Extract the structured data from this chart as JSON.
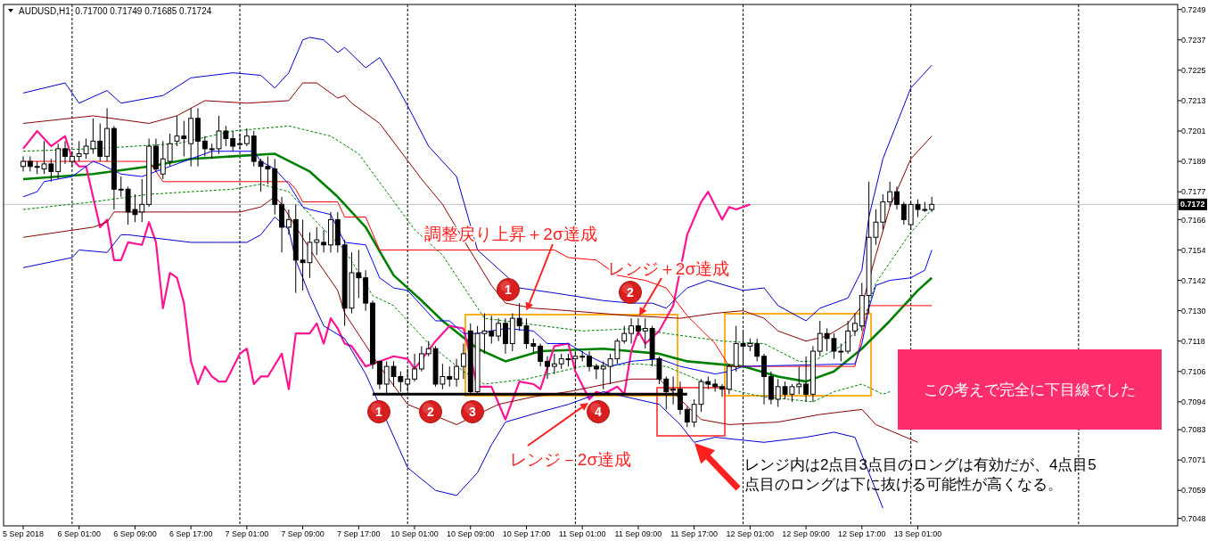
{
  "chart_data": {
    "type": "candlestick",
    "title": "AUDUSD,H1  0.71700 0.71749 0.71685 0.71724",
    "color": "#000000",
    "categories": [
      "5 Sep 2018",
      null,
      null,
      null,
      null,
      null,
      null,
      null,
      "6 Sep 01:00",
      null,
      null,
      null,
      null,
      null,
      null,
      null,
      "6 Sep 09:00",
      null,
      null,
      null,
      null,
      null,
      null,
      null,
      "6 Sep 17:00",
      null,
      null,
      null,
      null,
      null,
      null,
      null,
      "7 Sep 01:00",
      null,
      null,
      null,
      null,
      null,
      null,
      null,
      "7 Sep 09:00",
      null,
      null,
      null,
      null,
      null,
      null,
      null,
      "7 Sep 17:00",
      null,
      null,
      null,
      null,
      null,
      null,
      null,
      "10 Sep 01:00",
      null,
      null,
      null,
      null,
      null,
      null,
      null,
      "10 Sep 09:00",
      null,
      null,
      null,
      null,
      null,
      null,
      null,
      "10 Sep 17:00",
      null,
      null,
      null,
      null,
      null,
      null,
      null,
      "11 Sep 01:00",
      null,
      null,
      null,
      null,
      null,
      null,
      null,
      "11 Sep 09:00",
      null,
      null,
      null,
      null,
      null,
      null,
      null,
      "11 Sep 17:00",
      null,
      null,
      null,
      null,
      null,
      null,
      null,
      "12 Sep 01:00",
      null,
      null,
      null,
      null,
      null,
      null,
      null,
      "12 Sep 09:00",
      null,
      null,
      null,
      null,
      null,
      null,
      null,
      "12 Sep 17:00",
      null,
      null,
      null,
      null,
      null,
      null,
      null,
      "13 Sep 01:00",
      null,
      null
    ],
    "ohlc": [
      [
        0.7187,
        0.7191,
        0.7185,
        0.7189
      ],
      [
        0.7189,
        0.7191,
        0.7185,
        0.7187
      ],
      [
        0.7187,
        0.7189,
        0.7184,
        0.7187
      ],
      [
        0.7186,
        0.7197,
        0.7184,
        0.7188
      ],
      [
        0.7188,
        0.719,
        0.7181,
        0.7185
      ],
      [
        0.7185,
        0.7196,
        0.7182,
        0.7194
      ],
      [
        0.7194,
        0.7197,
        0.7188,
        0.7191
      ],
      [
        0.7189,
        0.7193,
        0.7187,
        0.7191
      ],
      [
        0.7191,
        0.7197,
        0.7189,
        0.7192
      ],
      [
        0.7192,
        0.7198,
        0.719,
        0.7195
      ],
      [
        0.7194,
        0.7206,
        0.7192,
        0.7197
      ],
      [
        0.7197,
        0.7204,
        0.7189,
        0.7191
      ],
      [
        0.7191,
        0.721,
        0.7189,
        0.7202
      ],
      [
        0.7202,
        0.7203,
        0.717,
        0.7178
      ],
      [
        0.7178,
        0.7183,
        0.7175,
        0.7178
      ],
      [
        0.7178,
        0.7179,
        0.7164,
        0.7169
      ],
      [
        0.717,
        0.7176,
        0.7165,
        0.7168
      ],
      [
        0.7169,
        0.7182,
        0.7165,
        0.7172
      ],
      [
        0.7172,
        0.7198,
        0.7171,
        0.7195
      ],
      [
        0.7195,
        0.7198,
        0.7185,
        0.7186
      ],
      [
        0.7184,
        0.7197,
        0.7182,
        0.719
      ],
      [
        0.7189,
        0.72,
        0.7187,
        0.7196
      ],
      [
        0.7197,
        0.7207,
        0.7195,
        0.7199
      ],
      [
        0.7199,
        0.7205,
        0.7191,
        0.7198
      ],
      [
        0.7196,
        0.721,
        0.7187,
        0.7206
      ],
      [
        0.7206,
        0.721,
        0.7187,
        0.7197
      ],
      [
        0.7197,
        0.7199,
        0.7191,
        0.7194
      ],
      [
        0.7194,
        0.7196,
        0.719,
        0.7194
      ],
      [
        0.7194,
        0.7207,
        0.7192,
        0.7201
      ],
      [
        0.7201,
        0.7203,
        0.7195,
        0.7198
      ],
      [
        0.7198,
        0.7201,
        0.7193,
        0.7195
      ],
      [
        0.7196,
        0.72,
        0.7194,
        0.7196
      ],
      [
        0.7196,
        0.7202,
        0.7195,
        0.7199
      ],
      [
        0.7199,
        0.7201,
        0.7187,
        0.7189
      ],
      [
        0.7189,
        0.719,
        0.7177,
        0.7187
      ],
      [
        0.7187,
        0.7191,
        0.718,
        0.7186
      ],
      [
        0.7186,
        0.719,
        0.7168,
        0.7172
      ],
      [
        0.7172,
        0.7175,
        0.7153,
        0.7163
      ],
      [
        0.7163,
        0.717,
        0.716,
        0.7166
      ],
      [
        0.7166,
        0.7172,
        0.7137,
        0.715
      ],
      [
        0.715,
        0.7166,
        0.7138,
        0.7149
      ],
      [
        0.7149,
        0.7161,
        0.7143,
        0.7157
      ],
      [
        0.7157,
        0.7163,
        0.7152,
        0.7158
      ],
      [
        0.7157,
        0.7162,
        0.7153,
        0.7156
      ],
      [
        0.7156,
        0.7169,
        0.7153,
        0.7166
      ],
      [
        0.7166,
        0.7169,
        0.7153,
        0.7156
      ],
      [
        0.7156,
        0.7158,
        0.7124,
        0.7131
      ],
      [
        0.7131,
        0.7153,
        0.7129,
        0.7145
      ],
      [
        0.7145,
        0.7154,
        0.7135,
        0.7143
      ],
      [
        0.7143,
        0.7146,
        0.713,
        0.7133
      ],
      [
        0.7133,
        0.7134,
        0.7107,
        0.7109
      ],
      [
        0.711,
        0.711,
        0.7099,
        0.7101
      ],
      [
        0.7101,
        0.711,
        0.7097,
        0.7108
      ],
      [
        0.7108,
        0.711,
        0.71,
        0.7104
      ],
      [
        0.7104,
        0.7106,
        0.7098,
        0.7102
      ],
      [
        0.7101,
        0.7107,
        0.7098,
        0.7103
      ],
      [
        0.7103,
        0.7113,
        0.7102,
        0.7107
      ],
      [
        0.7107,
        0.7116,
        0.7106,
        0.7113
      ],
      [
        0.7113,
        0.7118,
        0.7112,
        0.7115
      ],
      [
        0.7115,
        0.7116,
        0.71,
        0.7101
      ],
      [
        0.7101,
        0.7109,
        0.7099,
        0.7104
      ],
      [
        0.7104,
        0.7108,
        0.71,
        0.7103
      ],
      [
        0.7103,
        0.7111,
        0.71,
        0.7108
      ],
      [
        0.7108,
        0.7117,
        0.7103,
        0.7113
      ],
      [
        0.7122,
        0.7125,
        0.7097,
        0.7098
      ],
      [
        0.7098,
        0.7124,
        0.7097,
        0.7121
      ],
      [
        0.7121,
        0.7129,
        0.7113,
        0.7122
      ],
      [
        0.7122,
        0.7128,
        0.7117,
        0.712
      ],
      [
        0.712,
        0.7127,
        0.7118,
        0.7125
      ],
      [
        0.7125,
        0.7127,
        0.7113,
        0.7117
      ],
      [
        0.7117,
        0.7129,
        0.7114,
        0.7127
      ],
      [
        0.7127,
        0.7133,
        0.7122,
        0.7124
      ],
      [
        0.7124,
        0.7127,
        0.7115,
        0.7117
      ],
      [
        0.7117,
        0.7119,
        0.7113,
        0.7116
      ],
      [
        0.7116,
        0.7117,
        0.7108,
        0.711
      ],
      [
        0.711,
        0.7112,
        0.7103,
        0.7108
      ],
      [
        0.7108,
        0.7113,
        0.7105,
        0.7109
      ],
      [
        0.7109,
        0.7113,
        0.7107,
        0.7111
      ],
      [
        0.7111,
        0.7113,
        0.7108,
        0.7111
      ],
      [
        0.7111,
        0.7114,
        0.7107,
        0.7112
      ],
      [
        0.7112,
        0.7114,
        0.711,
        0.7112
      ],
      [
        0.7112,
        0.7114,
        0.7106,
        0.7108
      ],
      [
        0.7108,
        0.7109,
        0.7103,
        0.7107
      ],
      [
        0.7107,
        0.711,
        0.7099,
        0.7108
      ],
      [
        0.7108,
        0.7113,
        0.7101,
        0.7111
      ],
      [
        0.7111,
        0.7119,
        0.7109,
        0.7118
      ],
      [
        0.7118,
        0.7124,
        0.7117,
        0.7121
      ],
      [
        0.7121,
        0.7127,
        0.7117,
        0.7124
      ],
      [
        0.7124,
        0.7127,
        0.712,
        0.7122
      ],
      [
        0.7122,
        0.7127,
        0.7115,
        0.7123
      ],
      [
        0.7123,
        0.7124,
        0.7108,
        0.7111
      ],
      [
        0.7111,
        0.7112,
        0.7101,
        0.7103
      ],
      [
        0.7103,
        0.7104,
        0.7091,
        0.7098
      ],
      [
        0.7099,
        0.7104,
        0.7093,
        0.7099
      ],
      [
        0.7099,
        0.7102,
        0.7089,
        0.7091
      ],
      [
        0.7091,
        0.7092,
        0.7084,
        0.7086
      ],
      [
        0.7086,
        0.7095,
        0.7084,
        0.7093
      ],
      [
        0.7093,
        0.7103,
        0.709,
        0.7102
      ],
      [
        0.7102,
        0.7104,
        0.7099,
        0.7101
      ],
      [
        0.7101,
        0.7103,
        0.7098,
        0.71
      ],
      [
        0.71,
        0.7101,
        0.7096,
        0.7099
      ],
      [
        0.7099,
        0.7109,
        0.7097,
        0.7108
      ],
      [
        0.7108,
        0.7124,
        0.7106,
        0.7117
      ],
      [
        0.7117,
        0.7122,
        0.7108,
        0.7116
      ],
      [
        0.7116,
        0.7119,
        0.7114,
        0.7117
      ],
      [
        0.7117,
        0.7119,
        0.711,
        0.7112
      ],
      [
        0.7112,
        0.7113,
        0.7093,
        0.7104
      ],
      [
        0.7104,
        0.7106,
        0.7093,
        0.7095
      ],
      [
        0.7095,
        0.7103,
        0.7092,
        0.71
      ],
      [
        0.71,
        0.7102,
        0.7095,
        0.7097
      ],
      [
        0.7097,
        0.7101,
        0.7094,
        0.71
      ],
      [
        0.71,
        0.7108,
        0.7097,
        0.7101
      ],
      [
        0.7101,
        0.7112,
        0.7094,
        0.7097
      ],
      [
        0.7097,
        0.7116,
        0.7094,
        0.7114
      ],
      [
        0.7114,
        0.7126,
        0.7112,
        0.7121
      ],
      [
        0.7121,
        0.7123,
        0.7114,
        0.7119
      ],
      [
        0.7119,
        0.7121,
        0.7111,
        0.7114
      ],
      [
        0.7114,
        0.7117,
        0.711,
        0.7114
      ],
      [
        0.7114,
        0.7126,
        0.7113,
        0.7122
      ],
      [
        0.7122,
        0.7129,
        0.712,
        0.7125
      ],
      [
        0.7124,
        0.7141,
        0.7122,
        0.7136
      ],
      [
        0.7136,
        0.7181,
        0.7129,
        0.7159
      ],
      [
        0.7159,
        0.717,
        0.7156,
        0.7165
      ],
      [
        0.7165,
        0.7176,
        0.7162,
        0.7173
      ],
      [
        0.7173,
        0.7181,
        0.7171,
        0.7177
      ],
      [
        0.7177,
        0.7179,
        0.717,
        0.7172
      ],
      [
        0.7172,
        0.7173,
        0.7164,
        0.7166
      ],
      [
        0.7164,
        0.7173,
        0.7162,
        0.7172
      ],
      [
        0.7172,
        0.7174,
        0.7167,
        0.717
      ],
      [
        0.717,
        0.7173,
        0.7169,
        0.717
      ],
      [
        0.717,
        0.7175,
        0.7169,
        0.7172
      ]
    ],
    "series": [
      {
        "type": "line",
        "color": "#008000",
        "values": [
          0.7182,
          null,
          null,
          null,
          null,
          null,
          null,
          null,
          null,
          null,
          0.7184,
          null,
          null,
          null,
          null,
          null,
          null,
          null,
          0.7187,
          null,
          null,
          null,
          null,
          null,
          0.719,
          null,
          null,
          null,
          null,
          null,
          0.7191,
          null,
          null,
          null,
          null,
          null,
          0.7192,
          null,
          null,
          null,
          null,
          0.7185,
          null,
          null,
          null,
          0.7175,
          null,
          null,
          null,
          0.7163,
          null,
          null,
          null,
          0.7144,
          null,
          null,
          null,
          0.7134,
          null,
          null,
          0.7126,
          null,
          null,
          null,
          null,
          0.7115,
          null,
          null,
          null,
          0.711,
          null,
          null,
          null,
          null,
          0.7114,
          null,
          null,
          null,
          null,
          null,
          null,
          null,
          null,
          0.7115,
          null,
          null,
          null,
          null,
          null,
          null,
          null,
          0.7113,
          null,
          null,
          null,
          0.711,
          null,
          null,
          null,
          null,
          null,
          null,
          null,
          0.7108,
          null,
          null,
          null,
          null,
          0.7104,
          null,
          null,
          null,
          0.7102,
          null,
          null,
          null,
          0.7106,
          null,
          null,
          null,
          0.7115,
          null,
          null,
          null,
          0.7126,
          null,
          null,
          null,
          0.7138,
          null,
          0.7143
        ]
      },
      {
        "type": "line",
        "color": "#ff1493",
        "values": [
          0.7194,
          null,
          0.7201,
          null,
          0.7195,
          null,
          0.7199,
          0.719,
          0.7187,
          0.7187,
          null,
          0.7163,
          0.7166,
          0.715,
          0.715,
          0.7157,
          null,
          0.7156,
          0.7165,
          0.7157,
          0.7131,
          0.7145,
          0.7143,
          0.7133,
          0.711,
          0.7101,
          0.7108,
          0.7104,
          0.7102,
          0.7102,
          null,
          0.7113,
          0.7115,
          0.7101,
          0.7104,
          0.7104,
          null,
          0.7113,
          0.7099,
          0.7121,
          null,
          0.7121,
          0.7125,
          0.7117,
          0.7127,
          0.7123,
          0.7117,
          0.7116,
          null,
          0.7108,
          null,
          0.711,
          null,
          0.7112,
          null,
          0.7111,
          0.7107,
          null,
          null,
          0.7118,
          null,
          0.7124,
          null,
          0.7123,
          null,
          0.71,
          null,
          0.71,
          null,
          0.7087,
          null,
          0.7102,
          null,
          0.7101,
          0.7099,
          null,
          0.7116,
          null,
          0.7117,
          0.7106,
          null,
          0.7095,
          0.7098,
          0.7097,
          null,
          0.71,
          0.7097,
          0.7114,
          0.7122,
          0.7117,
          null,
          0.7122,
          null,
          0.7132,
          null,
          0.716,
          null,
          0.7173,
          0.7177,
          null,
          0.7166,
          0.7171,
          0.717,
          null,
          0.7172,
          null,
          null,
          null,
          null,
          null,
          null,
          null,
          null,
          null,
          null,
          null,
          null,
          null,
          null,
          null,
          null,
          null,
          null,
          null,
          null,
          null,
          null,
          null,
          null,
          null,
          null
        ]
      },
      {
        "type": "line",
        "color": "#008000",
        "line_style": "dashed",
        "values": [
          0.7193,
          null,
          null,
          null,
          null,
          null,
          null,
          null,
          null,
          null,
          0.7194,
          null,
          null,
          null,
          null,
          null,
          null,
          null,
          null,
          null,
          null,
          null,
          0.7196,
          null,
          null,
          null,
          null,
          null,
          null,
          null,
          0.7201,
          null,
          null,
          null,
          null,
          null,
          null,
          null,
          0.7203,
          null,
          null,
          null,
          null,
          null,
          0.7199,
          null,
          null,
          null,
          0.7192,
          null,
          null,
          null,
          0.7177,
          null,
          null,
          null,
          0.7162,
          null,
          null,
          null,
          0.7152,
          null,
          null,
          null,
          null,
          null,
          0.7127,
          null,
          null,
          null,
          null,
          null,
          null,
          null,
          null,
          null,
          null,
          null,
          null,
          null,
          0.7122,
          null,
          null,
          null,
          null,
          null,
          null,
          null,
          0.7123,
          null,
          null,
          null,
          0.7121,
          null,
          null,
          null,
          null,
          null,
          null,
          null,
          0.7118,
          null,
          null,
          null,
          null,
          null,
          0.7117,
          null,
          null,
          null,
          null,
          0.711,
          null,
          0.711,
          null,
          null,
          null,
          0.7116,
          null,
          null,
          0.7124,
          null,
          0.7141,
          null,
          0.7149,
          null,
          null,
          0.7161,
          null,
          null,
          0.717
        ]
      },
      {
        "type": "line",
        "color": "#008000",
        "line_style": "dashed",
        "values": [
          0.717,
          null,
          null,
          null,
          null,
          null,
          null,
          null,
          null,
          null,
          0.7173,
          null,
          null,
          null,
          null,
          null,
          null,
          null,
          0.7176,
          null,
          null,
          null,
          null,
          null,
          0.7177,
          null,
          null,
          null,
          null,
          null,
          0.7178,
          null,
          null,
          null,
          0.718,
          null,
          null,
          null,
          0.7177,
          null,
          null,
          null,
          0.7165,
          null,
          null,
          null,
          0.7154,
          null,
          null,
          null,
          0.7136,
          null,
          null,
          0.7132,
          null,
          null,
          null,
          null,
          0.7117,
          null,
          null,
          null,
          null,
          0.7106,
          null,
          null,
          0.7101,
          null,
          null,
          null,
          null,
          null,
          0.7103,
          null,
          null,
          null,
          null,
          null,
          null,
          null,
          0.7108,
          null,
          null,
          null,
          null,
          null,
          null,
          null,
          0.7109,
          null,
          null,
          null,
          0.7108,
          null,
          null,
          null,
          null,
          null,
          0.7101,
          null,
          null,
          null,
          null,
          null,
          0.7097,
          null,
          0.7096,
          null,
          null,
          null,
          null,
          null,
          null,
          0.7094,
          null,
          null,
          0.7098,
          null,
          null,
          null,
          0.7101,
          null,
          null,
          0.7097,
          0.7098,
          null,
          null,
          null,
          null,
          null,
          null
        ]
      },
      {
        "type": "line",
        "color": "#8b0000",
        "values": [
          0.7204,
          null,
          null,
          null,
          null,
          null,
          null,
          null,
          null,
          null,
          0.7207,
          null,
          null,
          null,
          null,
          null,
          null,
          null,
          0.7204,
          null,
          null,
          null,
          0.7207,
          null,
          null,
          null,
          0.7213,
          null,
          null,
          null,
          null,
          null,
          0.7212,
          null,
          null,
          null,
          null,
          null,
          0.7213,
          null,
          0.722,
          null,
          0.722,
          0.7218,
          null,
          0.7214,
          0.7215,
          0.7212,
          null,
          null,
          null,
          0.7204,
          null,
          null,
          null,
          null,
          null,
          0.7182,
          null,
          null,
          0.7172,
          null,
          null,
          0.7158,
          null,
          null,
          null,
          0.714,
          null,
          0.7133,
          null,
          null,
          null,
          0.7131,
          null,
          null,
          null,
          null,
          0.713,
          null,
          null,
          null,
          null,
          null,
          null,
          null,
          null,
          0.7128,
          null,
          null,
          null,
          null,
          null,
          null,
          0.7127,
          null,
          null,
          null,
          null,
          0.7129,
          null,
          null,
          null,
          0.713,
          null,
          null,
          0.7127,
          null,
          0.7122,
          null,
          null,
          null,
          0.7118,
          null,
          null,
          0.712,
          null,
          null,
          0.7125,
          null,
          0.7132,
          null,
          0.7152,
          null,
          0.7171,
          null,
          null,
          0.719,
          null,
          null,
          0.7199
        ]
      },
      {
        "type": "line",
        "color": "#8b0000",
        "values": [
          0.7159,
          null,
          null,
          null,
          null,
          null,
          null,
          null,
          null,
          null,
          0.7163,
          null,
          0.7165,
          0.7169,
          null,
          null,
          0.7169,
          null,
          null,
          null,
          null,
          null,
          null,
          null,
          0.7169,
          null,
          null,
          null,
          null,
          null,
          null,
          0.7169,
          null,
          null,
          0.7171,
          null,
          0.7175,
          0.7172,
          null,
          null,
          null,
          null,
          0.715,
          null,
          null,
          0.7138,
          0.7129,
          null,
          null,
          null,
          null,
          0.7108,
          null,
          null,
          null,
          0.7093,
          null,
          null,
          null,
          null,
          null,
          null,
          0.7085,
          null,
          null,
          null,
          null,
          null,
          0.7093,
          null,
          null,
          null,
          null,
          0.7096,
          null,
          null,
          null,
          null,
          0.7098,
          null,
          null,
          null,
          null,
          null,
          null,
          null,
          null,
          0.7103,
          null,
          null,
          null,
          0.7103,
          null,
          null,
          0.7095,
          null,
          null,
          0.7087,
          null,
          null,
          null,
          0.7085,
          null,
          null,
          null,
          null,
          null,
          null,
          0.7086,
          null,
          null,
          null,
          null,
          null,
          0.7089,
          null,
          null,
          0.709,
          null,
          null,
          0.7091,
          null,
          0.7085,
          null,
          null,
          null,
          null,
          null,
          0.7078,
          null,
          null
        ]
      },
      {
        "type": "line",
        "color": "#0000cd",
        "values": [
          0.7216,
          null,
          null,
          null,
          null,
          null,
          0.722,
          null,
          0.7212,
          null,
          null,
          null,
          0.7217,
          null,
          0.7212,
          null,
          null,
          null,
          null,
          null,
          0.7215,
          null,
          null,
          null,
          0.7222,
          null,
          null,
          null,
          null,
          null,
          0.7224,
          null,
          null,
          null,
          0.7223,
          null,
          0.7218,
          null,
          0.7224,
          null,
          0.7237,
          0.7238,
          null,
          0.7237,
          null,
          0.7232,
          0.7234,
          null,
          null,
          0.7226,
          null,
          0.723,
          null,
          0.7221,
          null,
          0.7211,
          null,
          null,
          0.7195,
          null,
          null,
          null,
          0.7183,
          null,
          null,
          0.7154,
          null,
          null,
          null,
          null,
          null,
          0.7139,
          null,
          null,
          null,
          null,
          0.7137,
          null,
          null,
          null,
          null,
          null,
          null,
          0.7134,
          null,
          null,
          null,
          0.7133,
          null,
          null,
          0.7133,
          null,
          0.7131,
          null,
          null,
          0.7139,
          null,
          null,
          0.7142,
          null,
          null,
          null,
          null,
          0.7138,
          null,
          null,
          0.7139,
          null,
          0.7132,
          null,
          null,
          null,
          0.7126,
          null,
          0.7131,
          null,
          null,
          null,
          0.7135,
          null,
          0.7146,
          0.7167,
          null,
          0.719,
          null,
          null,
          null,
          0.7218,
          null,
          null,
          0.7227
        ]
      },
      {
        "type": "line",
        "color": "#0000cd",
        "values": [
          0.7147,
          null,
          null,
          null,
          null,
          null,
          null,
          0.7151,
          0.7154,
          null,
          null,
          null,
          0.7153,
          null,
          0.716,
          0.716,
          null,
          null,
          0.7159,
          null,
          null,
          null,
          null,
          null,
          0.7157,
          null,
          null,
          null,
          0.7157,
          null,
          null,
          null,
          0.7157,
          null,
          0.716,
          null,
          0.7167,
          null,
          0.7162,
          0.715,
          null,
          0.7136,
          null,
          0.7124,
          null,
          null,
          0.7119,
          null,
          null,
          0.7105,
          null,
          null,
          null,
          null,
          null,
          0.7068,
          null,
          null,
          null,
          0.7059,
          null,
          null,
          0.7057,
          null,
          null,
          0.7066,
          null,
          0.7077,
          null,
          0.7086,
          null,
          null,
          null,
          null,
          0.709,
          null,
          null,
          null,
          0.7093,
          null,
          null,
          null,
          null,
          0.7098,
          null,
          null,
          null,
          null,
          null,
          null,
          null,
          0.7093,
          null,
          null,
          0.7085,
          null,
          0.7078,
          null,
          null,
          0.708,
          null,
          null,
          null,
          null,
          null,
          null,
          0.7078,
          null,
          null,
          null,
          null,
          null,
          0.708,
          null,
          null,
          null,
          0.7082,
          null,
          null,
          0.708,
          null,
          0.7066,
          null,
          0.7052,
          null,
          null,
          null,
          null,
          null,
          null,
          null
        ]
      },
      {
        "type": "line",
        "color": "#ff0000",
        "values": [
          0.7189,
          0.7189,
          0.7189,
          0.7189,
          0.7189,
          0.7189,
          0.7189,
          0.7189,
          0.7189,
          0.7189,
          0.7189,
          0.7189,
          0.7189,
          0.7189,
          0.7189,
          0.7189,
          0.7189,
          0.7189,
          0.7189,
          null,
          0.7181,
          0.7181,
          0.7181,
          0.7181,
          0.7181,
          0.7181,
          0.7181,
          0.7181,
          0.7181,
          0.7181,
          0.7181,
          0.7181,
          0.7181,
          0.7181,
          0.7181,
          0.7181,
          0.7181,
          0.7181,
          0.7181,
          0.7178,
          0.7173,
          0.7173,
          0.7173,
          0.7173,
          0.7173,
          0.7173,
          0.7167,
          0.7167,
          0.7167,
          0.7167,
          null,
          0.7154,
          0.7154,
          0.7154,
          0.7154,
          0.7154,
          0.7154,
          0.7154,
          0.7154,
          0.7154,
          0.7154,
          0.7154,
          0.7154,
          0.7154,
          0.7154,
          0.7154,
          0.7154,
          0.7154,
          0.7154,
          0.7154,
          0.7154,
          0.7154,
          0.7154,
          0.7154,
          0.7154,
          0.7154,
          0.7154,
          null,
          0.7151,
          null,
          null,
          null,
          0.715,
          null,
          null,
          0.7144,
          null,
          null,
          null,
          0.7142,
          null,
          null,
          0.7139,
          null,
          null,
          0.7128,
          null,
          null,
          null,
          0.7117,
          null,
          0.7108,
          0.7108,
          null,
          null,
          null,
          0.7108,
          0.7108,
          0.7108,
          0.7108,
          0.7108,
          0.7108,
          0.7108,
          null,
          0.7108,
          0.7108,
          0.7108,
          0.7108,
          0.7108,
          0.7108,
          0.712,
          0.7132,
          0.7132,
          0.7132,
          0.7132,
          0.7132,
          0.7132,
          0.7132,
          0.7132,
          0.7132,
          0.7132
        ]
      },
      {
        "type": "line",
        "color": "#0000ff",
        "values": [
          0.7175,
          null,
          0.7177,
          0.7181,
          null,
          null,
          null,
          0.7183,
          null,
          null,
          0.7189,
          0.7188,
          null,
          null,
          0.7184,
          null,
          null,
          0.7183,
          null,
          null,
          null,
          null,
          null,
          null,
          null,
          null,
          null,
          0.7193,
          null,
          null,
          null,
          null,
          null,
          0.7193,
          0.7189,
          null,
          0.7186,
          null,
          0.718,
          null,
          0.7171,
          0.717,
          null,
          null,
          0.7168,
          null,
          0.7157,
          null,
          null,
          0.7156,
          null,
          0.7143,
          null,
          0.7139,
          null,
          0.7138,
          null,
          null,
          null,
          0.7126,
          null,
          0.7126,
          null,
          0.7121,
          null,
          0.7121,
          null,
          null,
          null,
          0.7123,
          null,
          null,
          null,
          0.7122,
          null,
          0.7117,
          null,
          null,
          0.7117,
          null,
          null,
          0.7112,
          null,
          null,
          0.7108,
          null,
          null,
          0.711,
          null,
          null,
          null,
          0.7111,
          null,
          null,
          0.7108,
          null,
          null,
          null,
          null,
          0.7105,
          null,
          0.7106,
          null,
          0.7108,
          null,
          null,
          null,
          null,
          null,
          null,
          null,
          null,
          null,
          null,
          null,
          null,
          null,
          null,
          null,
          0.7109,
          0.7117,
          0.7131,
          0.714,
          null,
          0.7142,
          null,
          null,
          0.7143,
          null,
          0.7146,
          0.7154
        ]
      },
      {
        "type": "line",
        "color": "#000000",
        "values": [
          null,
          null,
          null,
          null,
          null,
          null,
          null,
          null,
          null,
          null,
          null,
          null,
          null,
          null,
          null,
          null,
          null,
          null,
          null,
          null,
          null,
          null,
          null,
          null,
          null,
          null,
          null,
          null,
          null,
          null,
          null,
          null,
          null,
          null,
          null,
          null,
          null,
          null,
          null,
          null,
          null,
          null,
          null,
          null,
          null,
          null,
          null,
          null,
          null,
          null,
          0.7097,
          0.7097,
          0.7097,
          0.7097,
          0.7097,
          0.7097,
          0.7097,
          0.7097,
          0.7097,
          0.7097,
          0.7097,
          0.7097,
          0.7097,
          0.7097,
          0.7097,
          0.7097,
          0.7097,
          0.7097,
          0.7097,
          0.7097,
          0.7097,
          0.7097,
          0.7097,
          0.7097,
          0.7097,
          0.7097,
          0.7097,
          0.7097,
          0.7097,
          0.7097,
          0.7097,
          0.7097,
          0.7097,
          0.7097,
          0.7097,
          0.7097,
          0.7097,
          0.7097,
          0.7097,
          0.7097,
          0.7097,
          0.7097,
          0.7097,
          0.7097,
          0.7097,
          0.7097,
          null,
          null,
          null,
          null,
          null,
          null,
          null,
          null,
          null,
          null,
          null,
          null,
          null,
          null,
          null,
          null,
          null,
          null,
          null,
          null,
          null,
          null,
          null,
          null,
          null,
          null,
          null,
          null,
          null,
          null,
          null,
          null,
          null,
          null,
          null
        ]
      }
    ],
    "ylim": [
      0.7045,
      0.7251
    ],
    "yticks": [
      {
        "value": 0.7249,
        "label": "0.7249"
      },
      {
        "value": 0.7237,
        "label": "0.7237"
      },
      {
        "value": 0.7225,
        "label": "0.7225"
      },
      {
        "value": 0.7213,
        "label": "0.7213"
      },
      {
        "value": 0.7201,
        "label": "0.7201"
      },
      {
        "value": 0.7189,
        "label": "0.7189"
      },
      {
        "value": 0.7177,
        "label": "0.7177"
      },
      {
        "value": 0.7166,
        "label": "0.7166"
      },
      {
        "value": 0.7154,
        "label": "0.7154"
      },
      {
        "value": 0.7142,
        "label": "0.7142"
      },
      {
        "value": 0.713,
        "label": "0.7130"
      },
      {
        "value": 0.7118,
        "label": "0.7118"
      },
      {
        "value": 0.7106,
        "label": "0.7106"
      },
      {
        "value": 0.7094,
        "label": "0.7094"
      },
      {
        "value": 0.7083,
        "label": "0.7083"
      },
      {
        "value": 0.7071,
        "label": "0.7071"
      },
      {
        "value": 0.7059,
        "label": "0.7059"
      },
      {
        "value": 0.7048,
        "label": "0.7048"
      }
    ],
    "ref_lines": [
      {
        "axis": "y",
        "value": 0.7172,
        "label": "0.7172",
        "color": "#c0c0c0"
      }
    ],
    "annotations": [
      "1",
      "2",
      "3",
      "4",
      "1",
      "2",
      {
        "text": "調整戻り上昇＋2σ達成",
        "x": "10 Sep 17:00",
        "y": 0.713
      },
      {
        "text": "レンジ＋2σ達成",
        "y": 0.7128
      },
      "レンジ－2σ達成",
      "この考えで完全に下目線でした",
      "レンジ内は2点目3点目のロングは有効だが、4点目5点目のロングは下に抜ける可能性が高くなる。"
    ]
  }
}
